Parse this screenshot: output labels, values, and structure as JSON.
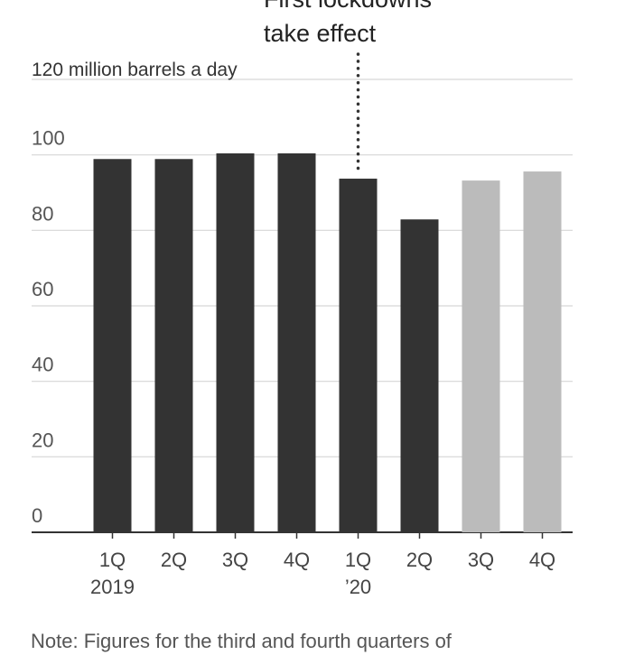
{
  "chart_data": {
    "type": "bar",
    "unit_label": "120 million barrels a day",
    "categories": [
      {
        "quarter": "1Q",
        "year": "2019"
      },
      {
        "quarter": "2Q",
        "year": ""
      },
      {
        "quarter": "3Q",
        "year": ""
      },
      {
        "quarter": "4Q",
        "year": ""
      },
      {
        "quarter": "1Q",
        "year": "’20"
      },
      {
        "quarter": "2Q",
        "year": ""
      },
      {
        "quarter": "3Q",
        "year": ""
      },
      {
        "quarter": "4Q",
        "year": ""
      }
    ],
    "values": [
      98.9,
      98.9,
      100.4,
      100.4,
      93.7,
      82.9,
      93.2,
      95.6
    ],
    "projected": [
      false,
      false,
      false,
      false,
      false,
      false,
      true,
      true
    ],
    "colors": {
      "actual": "#333333",
      "projected": "#bbbbbb"
    },
    "ylim": [
      0,
      120
    ],
    "yticks": [
      "0",
      "20",
      "40",
      "60",
      "80",
      "100"
    ],
    "grid": true,
    "annotation": {
      "lines": [
        "First lockdowns",
        "take effect"
      ],
      "category_index": 4
    },
    "note": "Note: Figures for the third and fourth quarters of"
  }
}
